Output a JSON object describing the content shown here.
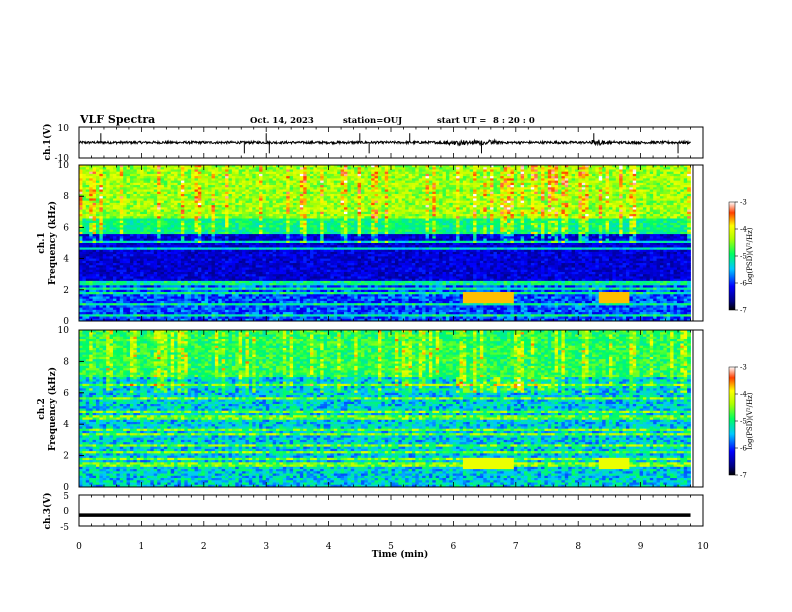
{
  "header": {
    "title": "VLF Spectra",
    "date": "Oct. 14, 2023",
    "station": "station=OUJ",
    "start_ut_label": "start UT =",
    "start_ut_value": "8 : 20 : 0"
  },
  "chart_data": [
    {
      "type": "line",
      "panel": "ch1-waveform",
      "ylabel": "ch.1(V)",
      "ylim": [
        -10,
        10
      ],
      "y_ticks": [
        "10",
        "-10"
      ],
      "xlim": [
        0,
        10
      ],
      "baseline": 0,
      "spikes_min": [
        0.35,
        2.65,
        3.0,
        3.05,
        4.5,
        4.65,
        5.3,
        6.45,
        8.25,
        9.6
      ],
      "color": "#000000"
    },
    {
      "type": "heatmap",
      "panel": "ch1-spectrogram",
      "ylabel": "ch.1 Frequency (kHz)",
      "ylim": [
        0,
        10
      ],
      "y_ticks": [
        "0",
        "2",
        "4",
        "6",
        "8",
        "10"
      ],
      "xlim": [
        0,
        10
      ],
      "colorbar": {
        "label": "log(PSD)(V²/Hz)",
        "ticks": [
          "-3",
          "-4",
          "-5",
          "-6",
          "-7"
        ],
        "range": [
          -7,
          -3
        ]
      }
    },
    {
      "type": "heatmap",
      "panel": "ch2-spectrogram",
      "ylabel": "ch.2 Frequency (kHz)",
      "ylim": [
        0,
        10
      ],
      "y_ticks": [
        "0",
        "2",
        "4",
        "6",
        "8",
        "10"
      ],
      "xlim": [
        0,
        10
      ],
      "colorbar": {
        "label": "log(PSD)(V²/Hz)",
        "ticks": [
          "-3",
          "-4",
          "-5",
          "-6",
          "-7"
        ],
        "range": [
          -7,
          -3
        ]
      }
    },
    {
      "type": "line",
      "panel": "ch3-waveform",
      "ylabel": "ch.3(V)",
      "ylim": [
        -5,
        5
      ],
      "y_ticks": [
        "5",
        "0",
        "-5"
      ],
      "xlim": [
        0,
        10
      ],
      "baseline": -1.5,
      "color": "#000000"
    }
  ],
  "x_axis": {
    "label": "Time (min)",
    "ticks": [
      "0",
      "1",
      "2",
      "3",
      "4",
      "5",
      "6",
      "7",
      "8",
      "9",
      "10"
    ]
  }
}
